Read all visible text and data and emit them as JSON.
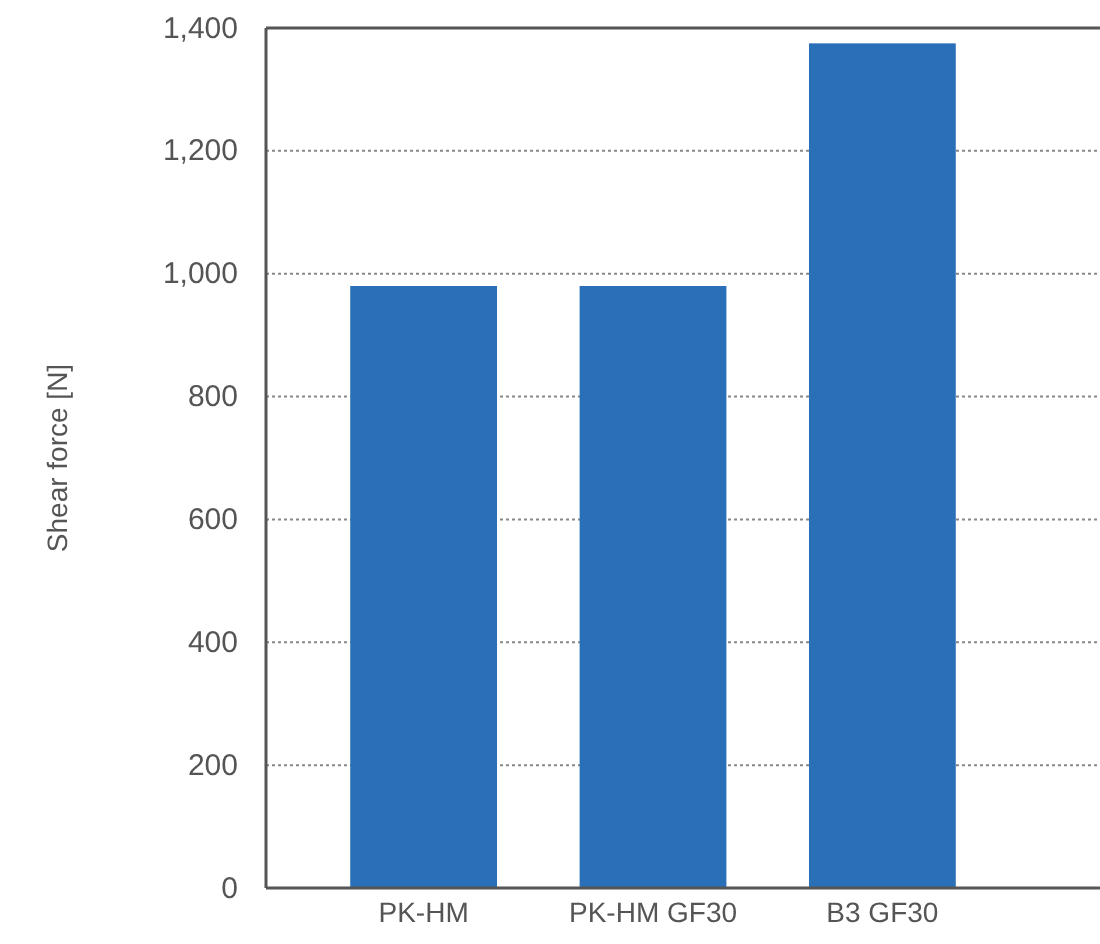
{
  "chart_data": {
    "type": "bar",
    "ylabel": "Shear force [N]",
    "categories": [
      "PK-HM",
      "PK-HM GF30",
      "B3 GF30"
    ],
    "values": [
      980,
      980,
      1375
    ],
    "color": "#2a70b8",
    "ylim": [
      0,
      1400
    ],
    "yticks": [
      {
        "value": 0,
        "label": "0"
      },
      {
        "value": 200,
        "label": "200"
      },
      {
        "value": 400,
        "label": "400"
      },
      {
        "value": 600,
        "label": "600"
      },
      {
        "value": 800,
        "label": "800"
      },
      {
        "value": 1000,
        "label": "1,000"
      },
      {
        "value": 1200,
        "label": "1,200"
      },
      {
        "value": 1400,
        "label": "1,400"
      }
    ],
    "grid": "y"
  }
}
